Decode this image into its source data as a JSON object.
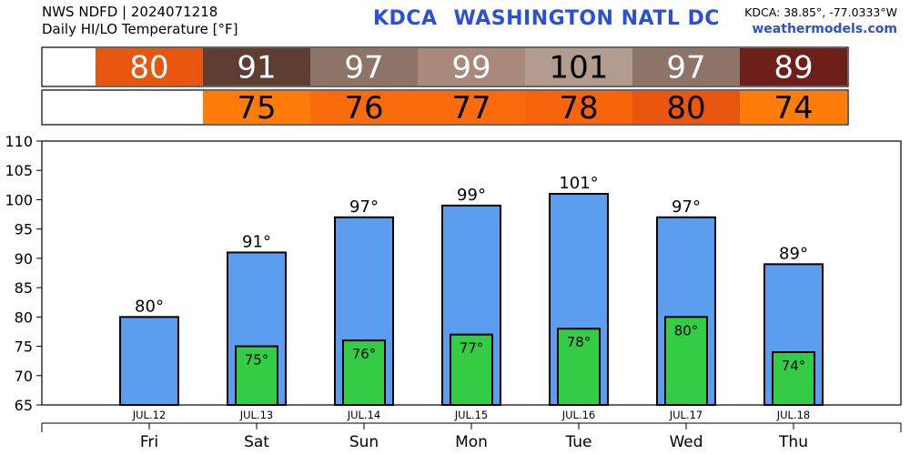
{
  "header": {
    "line1": "NWS NDFD | 2024071218",
    "line2": "Daily HI/LO Temperature [°F]",
    "station": "KDCA",
    "station_name": "WASHINGTON NATL DC",
    "coords": "KDCA: 38.85°, -77.0333°W",
    "site": "weathermodels.com"
  },
  "colors": {
    "high_bar": "#5b9ef0",
    "low_bar": "#33cc44",
    "hi_cells": [
      "#e8560f",
      "#5e3e32",
      "#8e7468",
      "#a8897b",
      "#b29b8f",
      "#8e7468",
      "#6e1f1a"
    ],
    "lo_cells": [
      "#ff7c0a",
      "#f96b0c",
      "#f96b0c",
      "#f7640c",
      "#e8560f",
      "#ff7c0a"
    ]
  },
  "chart_data": {
    "type": "bar",
    "categories": [
      "Fri",
      "Sat",
      "Sun",
      "Mon",
      "Tue",
      "Wed",
      "Thu"
    ],
    "dates": [
      "JUL.12",
      "JUL.13",
      "JUL.14",
      "JUL.15",
      "JUL.16",
      "JUL.17",
      "JUL.18"
    ],
    "series": [
      {
        "values": [
          80,
          91,
          97,
          99,
          101,
          97,
          89
        ],
        "labels": [
          "80°",
          "91°",
          "97°",
          "99°",
          "101°",
          "97°",
          "89°"
        ]
      },
      {
        "values": [
          null,
          75,
          76,
          77,
          78,
          80,
          74
        ],
        "labels": [
          "",
          "75°",
          "76°",
          "77°",
          "78°",
          "80°",
          "74°"
        ]
      }
    ],
    "hi_row": [
      "80",
      "91",
      "97",
      "99",
      "101",
      "97",
      "89"
    ],
    "lo_row": [
      "",
      "75",
      "76",
      "77",
      "78",
      "80",
      "74"
    ],
    "ylim": [
      65,
      110
    ],
    "yticks": [
      "65",
      "70",
      "75",
      "80",
      "85",
      "90",
      "95",
      "100",
      "105",
      "110"
    ],
    "grid": false,
    "legend": "none"
  }
}
